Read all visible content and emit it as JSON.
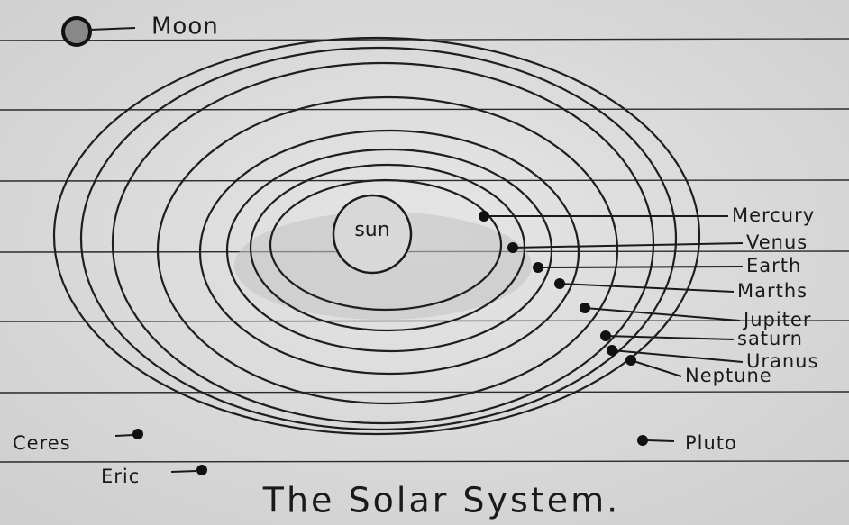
{
  "title": "The Solar System.",
  "moon": {
    "label": "Moon"
  },
  "sun": {
    "label": "sun"
  },
  "planets": [
    {
      "label": "Mercury"
    },
    {
      "label": "Venus"
    },
    {
      "label": "Earth"
    },
    {
      "label": "Marths"
    },
    {
      "label": "Jupiter"
    },
    {
      "label": "saturn"
    },
    {
      "label": "Uranus"
    },
    {
      "label": "Neptune"
    }
  ],
  "others": [
    {
      "label": "Ceres"
    },
    {
      "label": "Eric"
    },
    {
      "label": "Pluto"
    }
  ]
}
